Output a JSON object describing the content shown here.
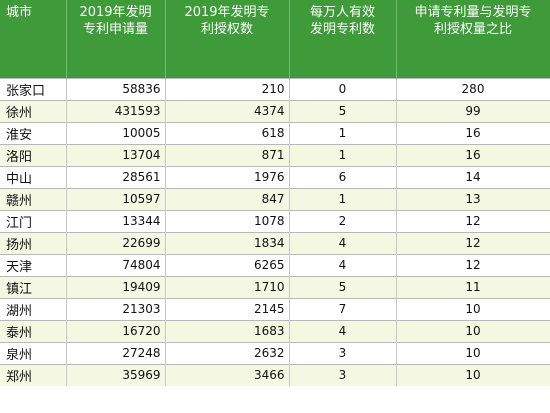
{
  "headers": [
    "城市",
    "2019年发明\n专利申请量",
    "2019年发明专\n利授权数",
    "每万人有效\n发明专利数",
    "申请专利量与发明专\n利授权量之比"
  ],
  "rows": [
    {
      "city": "张家口",
      "apply": "58836",
      "grant": "210",
      "per10k": "0",
      "ratio": "280"
    },
    {
      "city": "徐州",
      "apply": "431593",
      "grant": "4374",
      "per10k": "5",
      "ratio": "99"
    },
    {
      "city": "淮安",
      "apply": "10005",
      "grant": "618",
      "per10k": "1",
      "ratio": "16"
    },
    {
      "city": "洛阳",
      "apply": "13704",
      "grant": "871",
      "per10k": "1",
      "ratio": "16"
    },
    {
      "city": "中山",
      "apply": "28561",
      "grant": "1976",
      "per10k": "6",
      "ratio": "14"
    },
    {
      "city": "赣州",
      "apply": "10597",
      "grant": "847",
      "per10k": "1",
      "ratio": "13"
    },
    {
      "city": "江门",
      "apply": "13344",
      "grant": "1078",
      "per10k": "2",
      "ratio": "12"
    },
    {
      "city": "扬州",
      "apply": "22699",
      "grant": "1834",
      "per10k": "4",
      "ratio": "12"
    },
    {
      "city": "天津",
      "apply": "74804",
      "grant": "6265",
      "per10k": "4",
      "ratio": "12"
    },
    {
      "city": "镇江",
      "apply": "19409",
      "grant": "1710",
      "per10k": "5",
      "ratio": "11"
    },
    {
      "city": "湖州",
      "apply": "21303",
      "grant": "2145",
      "per10k": "7",
      "ratio": "10"
    },
    {
      "city": "泰州",
      "apply": "16720",
      "grant": "1683",
      "per10k": "4",
      "ratio": "10"
    },
    {
      "city": "泉州",
      "apply": "27248",
      "grant": "2632",
      "per10k": "3",
      "ratio": "10"
    },
    {
      "city": "郑州",
      "apply": "35969",
      "grant": "3466",
      "per10k": "3",
      "ratio": "10"
    }
  ],
  "colors": {
    "header_bg": "#3f9a3a",
    "header_text": "#ffffff",
    "row_alt": "#f4f7e2"
  }
}
